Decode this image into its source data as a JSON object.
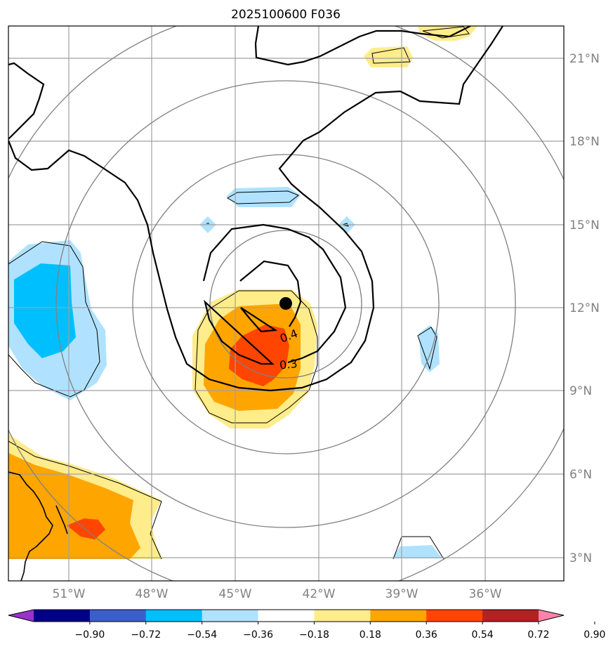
{
  "title": "2025100600 F036",
  "lat_labels": [
    "21°N",
    "18°N",
    "15°N",
    "12°N",
    "9°N",
    "6°N",
    "3°N"
  ],
  "lon_labels": [
    "51°W",
    "48°W",
    "45°W",
    "42°W",
    "39°W",
    "36°W"
  ],
  "contour_labels": [
    "0.4",
    "0.3"
  ],
  "colorbar": {
    "ticks": [
      "−0.90",
      "−0.72",
      "−0.54",
      "−0.36",
      "−0.18",
      "0.18",
      "0.36",
      "0.54",
      "0.72",
      "0.90"
    ],
    "colors": [
      "#9932cc",
      "#00008b",
      "#3a5fcd",
      "#00bfff",
      "#b0e2ff",
      "#ffffff",
      "#ffec8b",
      "#ffa500",
      "#ff4500",
      "#b22222",
      "#ff82ab"
    ]
  },
  "colors": {
    "shading_positive_1": "#ffec8b",
    "shading_positive_2": "#ffa500",
    "shading_positive_3": "#ff4500",
    "shading_negative_1": "#b0e2ff",
    "shading_negative_2": "#00bfff",
    "grid": "#a0a0a0",
    "range_rings": "#808080",
    "center_marker": "#000000"
  }
}
